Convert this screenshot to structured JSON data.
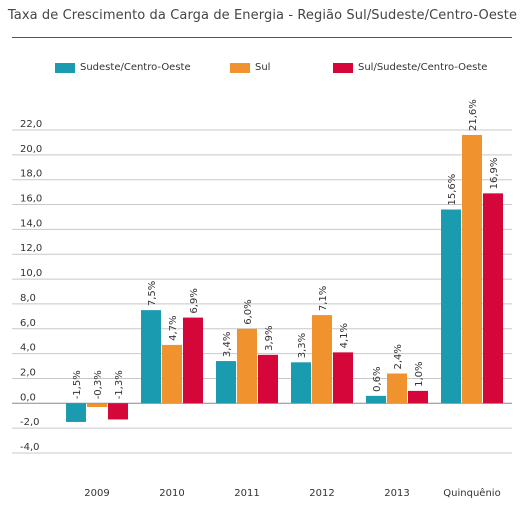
{
  "chart_data": {
    "type": "bar",
    "title": "Taxa de Crescimento da Carga de Energia - Região Sul/Sudeste/Centro-Oeste",
    "categories": [
      "2009",
      "2010",
      "2011",
      "2012",
      "2013",
      "Quinquênio"
    ],
    "series": [
      {
        "name": "Sudeste/Centro-Oeste",
        "color": "#1a9bb0",
        "values": [
          -1.5,
          7.5,
          3.4,
          3.3,
          0.6,
          15.6
        ],
        "labels": [
          "-1,5%",
          "7,5%",
          "3,4%",
          "3,3%",
          "0,6%",
          "15,6%"
        ]
      },
      {
        "name": "Sul",
        "color": "#f0922e",
        "values": [
          -0.3,
          4.7,
          6.0,
          7.1,
          2.4,
          21.6
        ],
        "labels": [
          "-0,3%",
          "4,7%",
          "6,0%",
          "7,1%",
          "2,4%",
          "21,6%"
        ]
      },
      {
        "name": "Sul/Sudeste/Centro-Oeste",
        "color": "#d5063a",
        "values": [
          -1.3,
          6.9,
          3.9,
          4.1,
          1.0,
          16.9
        ],
        "labels": [
          "-1,3%",
          "6,9%",
          "3,9%",
          "4,1%",
          "1,0%",
          "16,9%"
        ]
      }
    ],
    "yticks": [
      22,
      20,
      18,
      16,
      14,
      12,
      10,
      8,
      6,
      4,
      2,
      0,
      -2,
      -4
    ],
    "ytick_labels": [
      "22,0",
      "20,0",
      "18,0",
      "16,0",
      "14,0",
      "12,0",
      "10,0",
      "8,0",
      "6,0",
      "4,0",
      "2,0",
      "0,0",
      "-2,0",
      "-4,0"
    ],
    "ylim": [
      -4,
      22
    ],
    "grid": true,
    "legend_position": "top"
  }
}
